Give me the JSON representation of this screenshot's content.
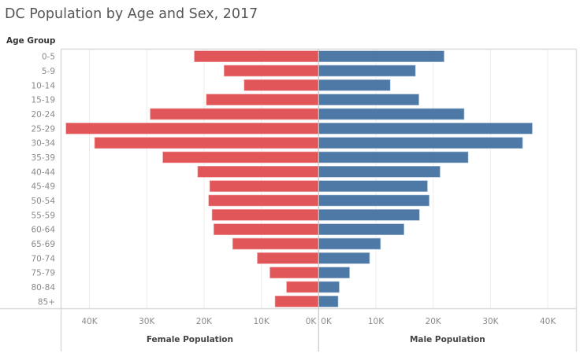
{
  "chart_data": {
    "type": "bar",
    "orientation": "horizontal",
    "subtype": "population-pyramid",
    "title": "DC Population by Age and Sex, 2017",
    "ylabel": "Age Group",
    "categories": [
      "0-5",
      "5-9",
      "10-14",
      "15-19",
      "20-24",
      "25-29",
      "30-34",
      "35-39",
      "40-44",
      "45-49",
      "50-54",
      "55-59",
      "60-64",
      "65-69",
      "70-74",
      "75-79",
      "80-84",
      "85+"
    ],
    "series": [
      {
        "name": "Female Population",
        "color": "#E15759",
        "side": "left",
        "xlabel": "Female Population",
        "xlim": [
          0,
          44500
        ],
        "ticks": [
          0,
          10000,
          20000,
          30000,
          40000
        ],
        "tick_labels": [
          "0K",
          "10K",
          "20K",
          "30K",
          "40K"
        ],
        "values": [
          21700,
          16500,
          13000,
          19600,
          29400,
          44100,
          39100,
          27200,
          21100,
          19000,
          19200,
          18600,
          18300,
          15000,
          10700,
          8500,
          5600,
          7600
        ]
      },
      {
        "name": "Male Population",
        "color": "#4E79A7",
        "side": "right",
        "xlabel": "Male Population",
        "xlim": [
          0,
          44500
        ],
        "ticks": [
          0,
          10000,
          20000,
          30000,
          40000
        ],
        "tick_labels": [
          "0K",
          "10K",
          "20K",
          "30K",
          "40K"
        ],
        "values": [
          21900,
          16900,
          12500,
          17500,
          25400,
          37300,
          35600,
          26100,
          21200,
          19000,
          19300,
          17600,
          14900,
          10800,
          8900,
          5400,
          3600,
          3400
        ]
      }
    ],
    "grid": true,
    "legend": "none"
  }
}
